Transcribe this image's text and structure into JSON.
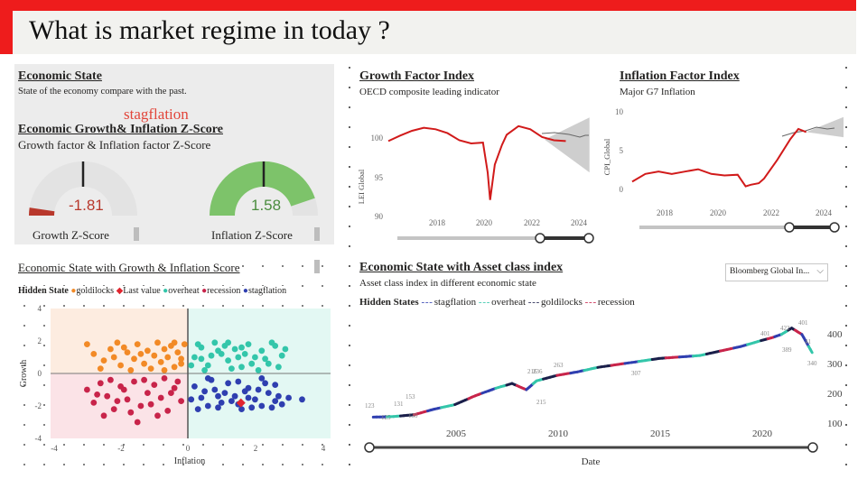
{
  "header": {
    "title": "What is market regime in today ?"
  },
  "economic_state": {
    "title": "Economic State",
    "subtitle": "State of the economy compare with the past.",
    "current_state": "stagflation",
    "zscore_title": "Economic Growth& Inflation Z-Score",
    "zscore_subtitle": "Growth factor & Inflation factor Z-Score",
    "growth_gauge": {
      "value": -1.81,
      "display": "-1.81",
      "label": "Growth Z-Score",
      "min": -2,
      "max": 2,
      "color": "#b8382c"
    },
    "inflation_gauge": {
      "value": 1.58,
      "display": "1.58",
      "label": "Inflation Z-Score",
      "min": -2,
      "max": 2,
      "color": "#7dc36a"
    }
  },
  "growth_factor": {
    "title": "Growth Factor Index",
    "subtitle": "OECD composite leading indicator",
    "ylabel": "LEI Global",
    "yticks": [
      "100",
      "95",
      "90"
    ],
    "xticks": [
      "2018",
      "2020",
      "2022",
      "2024"
    ]
  },
  "inflation_factor": {
    "title": "Inflation Factor Index",
    "subtitle": "Major G7 Inflation",
    "ylabel": "CPI_Global",
    "yticks": [
      "10",
      "5",
      "0"
    ],
    "xticks": [
      "2018",
      "2020",
      "2022",
      "2024"
    ]
  },
  "scatter_panel": {
    "title": "Economic State with Growth & Inflation Score",
    "legend_title": "Hidden State",
    "legend": [
      {
        "name": "goldilocks",
        "color": "#f28a26"
      },
      {
        "name": "Last value",
        "color": "#e0252f"
      },
      {
        "name": "overheat",
        "color": "#33c6aa"
      },
      {
        "name": "recession",
        "color": "#c8244a"
      },
      {
        "name": "stagflation",
        "color": "#2f3fb0"
      }
    ],
    "xlabel": "Inflation",
    "ylabel": "Growth",
    "xticks": [
      "-4",
      "-2",
      "0",
      "2",
      "4"
    ],
    "yticks": [
      "4",
      "2",
      "0",
      "-2",
      "-4"
    ]
  },
  "asset_panel": {
    "title": "Economic State with Asset class index",
    "subtitle": "Asset class index in different economic state",
    "dropdown_value": "Bloomberg Global In...",
    "legend_title": "Hidden States",
    "legend": [
      {
        "name": "stagflation",
        "color": "#2f3fb0"
      },
      {
        "name": "overheat",
        "color": "#33c6aa"
      },
      {
        "name": "goldilocks",
        "color": "#1a1f4a"
      },
      {
        "name": "recession",
        "color": "#c8244a"
      }
    ],
    "xlabel": "Date",
    "xticks": [
      "2005",
      "2010",
      "2015",
      "2020"
    ],
    "yticks": [
      "400",
      "300",
      "200",
      "100"
    ],
    "point_labels": [
      "123",
      "125",
      "131",
      "130",
      "153",
      "216",
      "236",
      "215",
      "263",
      "307",
      "401",
      "389",
      "422",
      "401",
      "41",
      "340"
    ]
  },
  "chart_data": [
    {
      "type": "line",
      "title": "Growth Factor Index",
      "ylabel": "LEI Global",
      "ylim": [
        89,
        102
      ],
      "x": [
        2016.0,
        2016.5,
        2017.0,
        2017.5,
        2018.0,
        2018.5,
        2019.0,
        2019.5,
        2020.0,
        2020.2,
        2020.3,
        2020.5,
        2020.8,
        2021.0,
        2021.5,
        2022.0,
        2022.5,
        2023.0,
        2023.5
      ],
      "series": [
        {
          "name": "LEI Global",
          "values": [
            99.5,
            100.2,
            100.8,
            101.2,
            101.0,
            100.5,
            99.6,
            99.2,
            99.3,
            95.5,
            92.0,
            96.5,
            99.0,
            100.3,
            101.4,
            101.0,
            100.0,
            99.6,
            99.5
          ]
        }
      ],
      "forecast_band": {
        "x_start": 2022.6,
        "x_end": 2024.5,
        "low_end": 95.5,
        "high_end": 102.5
      }
    },
    {
      "type": "line",
      "title": "Inflation Factor Index",
      "ylabel": "CPI_Global",
      "ylim": [
        -1,
        11
      ],
      "x": [
        2016.0,
        2016.5,
        2017.0,
        2017.5,
        2018.0,
        2018.5,
        2019.0,
        2019.5,
        2020.0,
        2020.3,
        2020.5,
        2020.8,
        2021.0,
        2021.5,
        2022.0,
        2022.3,
        2022.6
      ],
      "series": [
        {
          "name": "CPI_Global",
          "values": [
            1.0,
            2.0,
            2.3,
            2.0,
            2.3,
            2.6,
            2.0,
            1.8,
            1.9,
            0.4,
            0.6,
            0.8,
            1.4,
            3.8,
            6.5,
            7.8,
            7.4
          ]
        }
      ],
      "forecast_band": {
        "x_start": 2022.6,
        "x_end": 2024.5,
        "low_end": 6.5,
        "high_end": 10.0
      }
    },
    {
      "type": "scatter",
      "title": "Economic State with Growth & Inflation Score",
      "xlabel": "Inflation",
      "ylabel": "Growth",
      "xlim": [
        -4,
        4
      ],
      "ylim": [
        -4,
        4
      ],
      "series": [
        {
          "name": "goldilocks",
          "points": [
            [
              -3.0,
              1.8
            ],
            [
              -2.8,
              1.2
            ],
            [
              -2.5,
              0.8
            ],
            [
              -2.3,
              1.5
            ],
            [
              -2.1,
              1.9
            ],
            [
              -2.0,
              0.5
            ],
            [
              -1.8,
              1.3
            ],
            [
              -1.6,
              0.9
            ],
            [
              -1.5,
              1.8
            ],
            [
              -1.3,
              0.6
            ],
            [
              -1.2,
              1.4
            ],
            [
              -1.0,
              1.1
            ],
            [
              -0.9,
              1.9
            ],
            [
              -0.8,
              0.7
            ],
            [
              -0.7,
              1.5
            ],
            [
              -0.6,
              1.0
            ],
            [
              -0.5,
              1.7
            ],
            [
              -0.4,
              0.4
            ],
            [
              -0.3,
              1.3
            ],
            [
              -0.2,
              0.9
            ],
            [
              -0.1,
              1.8
            ],
            [
              -1.9,
              1.6
            ],
            [
              -2.6,
              0.3
            ],
            [
              -1.1,
              0.3
            ],
            [
              -0.4,
              1.9
            ],
            [
              -1.7,
              0.2
            ],
            [
              -0.7,
              0.2
            ],
            [
              -2.2,
              1.0
            ],
            [
              -1.4,
              1.2
            ],
            [
              -0.2,
              0.6
            ]
          ]
        },
        {
          "name": "overheat",
          "points": [
            [
              0.2,
              1.0
            ],
            [
              0.4,
              1.6
            ],
            [
              0.6,
              0.5
            ],
            [
              0.8,
              1.9
            ],
            [
              1.0,
              1.2
            ],
            [
              1.2,
              0.8
            ],
            [
              1.4,
              1.5
            ],
            [
              1.6,
              0.4
            ],
            [
              1.8,
              1.8
            ],
            [
              2.0,
              1.0
            ],
            [
              2.2,
              1.4
            ],
            [
              2.4,
              0.6
            ],
            [
              2.6,
              1.7
            ],
            [
              2.8,
              1.1
            ],
            [
              0.5,
              0.2
            ],
            [
              0.9,
              1.4
            ],
            [
              1.3,
              0.3
            ],
            [
              1.7,
              1.2
            ],
            [
              2.1,
              0.2
            ],
            [
              2.5,
              1.9
            ],
            [
              0.3,
              1.8
            ],
            [
              1.1,
              1.7
            ],
            [
              1.9,
              0.6
            ],
            [
              2.7,
              0.4
            ],
            [
              0.7,
              1.1
            ],
            [
              1.5,
              1.0
            ],
            [
              2.3,
              0.9
            ],
            [
              0.1,
              0.5
            ],
            [
              1.2,
              1.9
            ],
            [
              2.9,
              1.5
            ],
            [
              1.6,
              1.6
            ],
            [
              0.4,
              0.9
            ]
          ]
        },
        {
          "name": "recession",
          "points": [
            [
              -3.0,
              -1.0
            ],
            [
              -2.8,
              -1.8
            ],
            [
              -2.6,
              -0.6
            ],
            [
              -2.4,
              -1.4
            ],
            [
              -2.2,
              -2.2
            ],
            [
              -2.0,
              -0.8
            ],
            [
              -1.8,
              -1.6
            ],
            [
              -1.6,
              -0.5
            ],
            [
              -1.4,
              -2.0
            ],
            [
              -1.2,
              -1.2
            ],
            [
              -1.0,
              -0.7
            ],
            [
              -0.8,
              -1.5
            ],
            [
              -0.6,
              -2.3
            ],
            [
              -0.4,
              -0.9
            ],
            [
              -0.2,
              -1.7
            ],
            [
              -1.5,
              -3.0
            ],
            [
              -2.5,
              -2.6
            ],
            [
              -0.9,
              -2.6
            ],
            [
              -1.9,
              -1.0
            ],
            [
              -1.1,
              -1.9
            ],
            [
              -2.7,
              -1.3
            ],
            [
              -0.5,
              -1.2
            ],
            [
              -1.7,
              -2.4
            ],
            [
              -0.3,
              -0.5
            ],
            [
              -2.3,
              -0.4
            ],
            [
              -1.3,
              -0.4
            ],
            [
              -2.1,
              -1.7
            ],
            [
              -0.7,
              -0.3
            ]
          ]
        },
        {
          "name": "stagflation",
          "points": [
            [
              0.2,
              -0.8
            ],
            [
              0.4,
              -1.5
            ],
            [
              0.6,
              -2.0
            ],
            [
              0.8,
              -1.0
            ],
            [
              1.0,
              -1.8
            ],
            [
              1.2,
              -0.6
            ],
            [
              1.4,
              -1.4
            ],
            [
              1.6,
              -2.2
            ],
            [
              1.8,
              -0.9
            ],
            [
              2.0,
              -1.6
            ],
            [
              2.2,
              -2.0
            ],
            [
              2.4,
              -1.2
            ],
            [
              2.6,
              -0.7
            ],
            [
              2.8,
              -1.9
            ],
            [
              0.3,
              -2.2
            ],
            [
              0.7,
              -0.4
            ],
            [
              1.1,
              -1.2
            ],
            [
              1.5,
              -0.5
            ],
            [
              1.9,
              -2.1
            ],
            [
              2.3,
              -0.6
            ],
            [
              2.7,
              -1.4
            ],
            [
              0.5,
              -1.1
            ],
            [
              0.9,
              -2.1
            ],
            [
              1.3,
              -1.7
            ],
            [
              1.7,
              -1.1
            ],
            [
              2.1,
              -1.0
            ],
            [
              2.5,
              -2.1
            ],
            [
              0.1,
              -1.6
            ],
            [
              3.0,
              -1.5
            ],
            [
              3.4,
              -1.6
            ],
            [
              0.6,
              -0.3
            ],
            [
              1.5,
              -1.9
            ],
            [
              2.2,
              -0.3
            ],
            [
              0.9,
              -1.4
            ],
            [
              1.8,
              -1.5
            ],
            [
              2.6,
              -1.7
            ]
          ]
        },
        {
          "name": "Last value",
          "points": [
            [
              1.58,
              -1.81
            ]
          ]
        }
      ]
    },
    {
      "type": "line",
      "title": "Economic State with Asset class index",
      "xlabel": "Date",
      "xlim": [
        2000.5,
        2022.8
      ],
      "ylim": [
        60,
        440
      ],
      "x": [
        2001.0,
        2002.0,
        2003.0,
        2004.0,
        2005.0,
        2006.0,
        2007.0,
        2007.8,
        2008.5,
        2009.0,
        2010.0,
        2011.0,
        2012.0,
        2013.0,
        2014.0,
        2015.0,
        2016.0,
        2017.0,
        2018.0,
        2019.0,
        2020.0,
        2020.5,
        2021.0,
        2021.5,
        2022.0,
        2022.5
      ],
      "series": [
        {
          "name": "Bloomberg Global Index",
          "values": [
            123,
            125,
            131,
            150,
            165,
            195,
            220,
            236,
            215,
            245,
            263,
            275,
            290,
            300,
            310,
            320,
            325,
            330,
            345,
            360,
            380,
            389,
            401,
            422,
            401,
            340
          ]
        }
      ],
      "regimes": [
        "stagflation",
        "overheat",
        "goldilocks",
        "recession"
      ]
    }
  ]
}
